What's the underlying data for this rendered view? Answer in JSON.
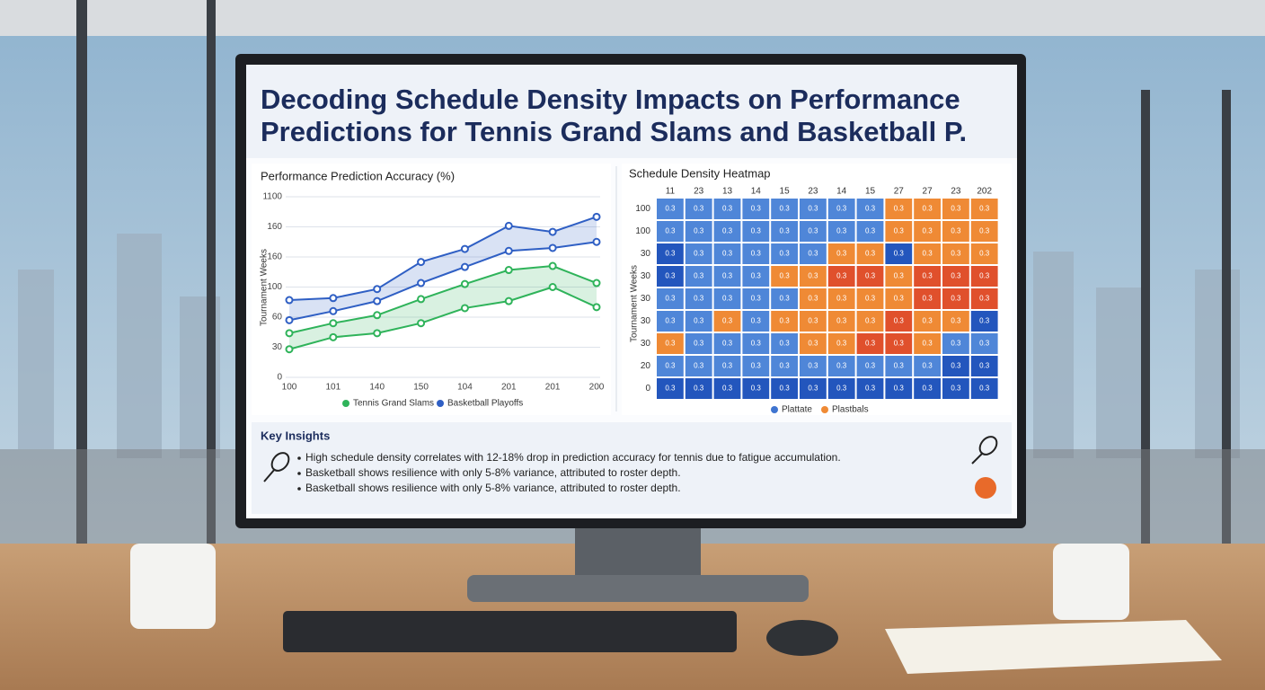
{
  "title": "Decoding Schedule Density Impacts on Performance Predictions for Tennis Grand Slams and Basketball P.",
  "chart_data": [
    {
      "type": "line",
      "title": "Performance Prediction Accuracy (%)",
      "y_label": "Tournament Weeks",
      "categories": [
        "100",
        "101",
        "140",
        "150",
        "104",
        "201",
        "201",
        "200"
      ],
      "series": [
        {
          "name": "Tennis Grand Slams",
          "color": "#2fb35a",
          "values": [
            28,
            40,
            44,
            54,
            69,
            76,
            90,
            70
          ],
          "upper": [
            44,
            54,
            62,
            78,
            93,
            107,
            111,
            94
          ]
        },
        {
          "name": "Basketball Playoffs",
          "color": "#2f5fc4",
          "values": [
            57,
            66,
            76,
            94,
            110,
            126,
            129,
            135
          ],
          "upper": [
            77,
            79,
            88,
            115,
            128,
            151,
            145,
            160
          ]
        }
      ],
      "ylim": [
        0,
        180
      ],
      "yticks": [
        0,
        30,
        60,
        {
          "value": 90,
          "label": "100"
        },
        {
          "value": 120,
          "label": "160"
        },
        {
          "value": 150,
          "label": "160"
        },
        {
          "value": 180,
          "label": "1100"
        }
      ],
      "grid": true
    },
    {
      "type": "heatmap",
      "title": "Schedule Density Heatmap",
      "y_label": "Tournament Weeks",
      "columns": [
        "11",
        "23",
        "13",
        "14",
        "15",
        "23",
        "14",
        "15",
        "27",
        "27",
        "23",
        "202"
      ],
      "rows": [
        "100",
        "100",
        "30",
        "30",
        "30",
        "30",
        "30",
        "20",
        "0"
      ],
      "cell_label": "0.3",
      "palette": {
        "L": "#4f86d8",
        "D": "#2356bd",
        "O": "#ef8a35",
        "R": "#e0502c"
      },
      "cells": [
        "LLLLLLLLOOOO",
        "LLLLLLLLOOOO",
        "DLLLLLOODOOO",
        "DLLLOORRORRR",
        "LLLLLOOOORRR",
        "LLOLOOOOROOD",
        "OLLLLOORROLL",
        "LLLLLLLLLLDD",
        "DDDDDDDDDDDD"
      ],
      "legend": [
        {
          "name": "Plattate",
          "color": "#3f74d0"
        },
        {
          "name": "Plastbals",
          "color": "#ef8a35"
        }
      ]
    }
  ],
  "insights": {
    "title": "Key Insights",
    "items": [
      "High schedule density correlates with 12-18% drop in prediction accuracy for tennis due to fatigue accumulation.",
      "Basketball shows resilience with only 5-8% variance, attributed to roster depth.",
      "Basketball shows resilience with only 5-8% variance, attributed to roster depth."
    ]
  }
}
